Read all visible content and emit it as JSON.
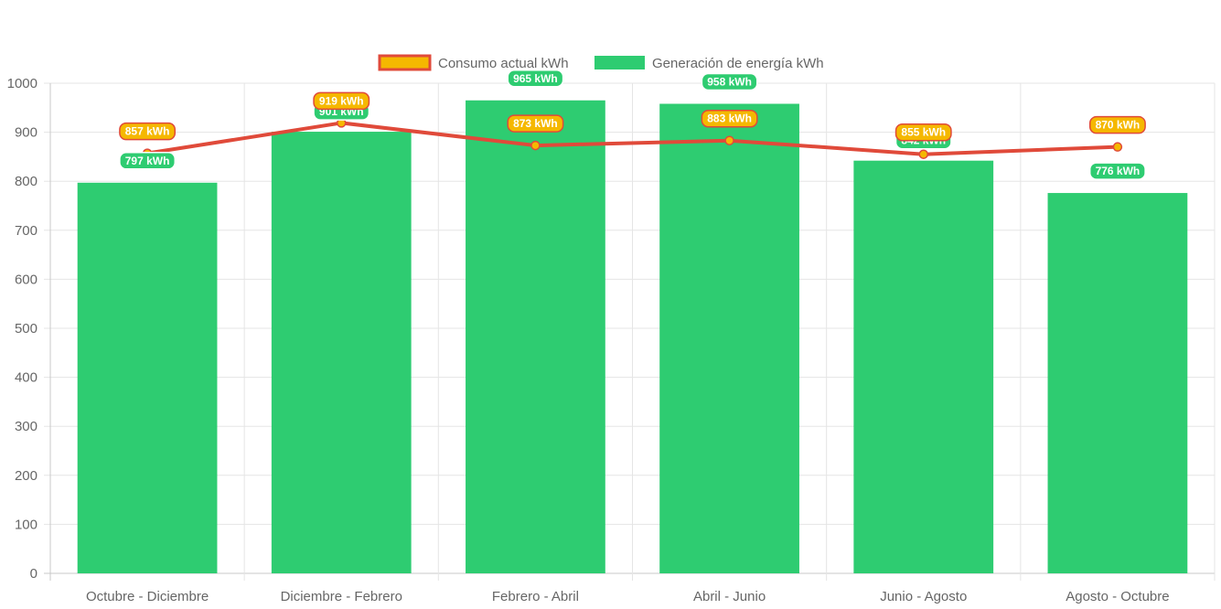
{
  "chart_data": {
    "type": "bar",
    "categories": [
      "Octubre - Diciembre",
      "Diciembre - Febrero",
      "Febrero - Abril",
      "Abril - Junio",
      "Junio - Agosto",
      "Agosto - Octubre"
    ],
    "series": [
      {
        "name": "Consumo actual kWh",
        "type": "line",
        "values": [
          857,
          919,
          873,
          883,
          855,
          870
        ],
        "labels": [
          "857 kWh",
          "919 kWh",
          "873 kWh",
          "883 kWh",
          "855 kWh",
          "870 kWh"
        ],
        "color": "#e04a3a",
        "point_color": "#f5b800"
      },
      {
        "name": "Generación de energía kWh",
        "type": "bar",
        "values": [
          797,
          901,
          965,
          958,
          842,
          776
        ],
        "labels": [
          "797 kWh",
          "901 kWh",
          "965 kWh",
          "958 kWh",
          "842 kWh",
          "776 kWh"
        ],
        "color": "#2ecc71"
      }
    ],
    "ylim": [
      0,
      1000
    ],
    "yticks": [
      "0",
      "100",
      "200",
      "300",
      "400",
      "500",
      "600",
      "700",
      "800",
      "900",
      "1000"
    ],
    "grid": true,
    "legend_position": "top-center",
    "title": "",
    "xlabel": "",
    "ylabel": ""
  }
}
